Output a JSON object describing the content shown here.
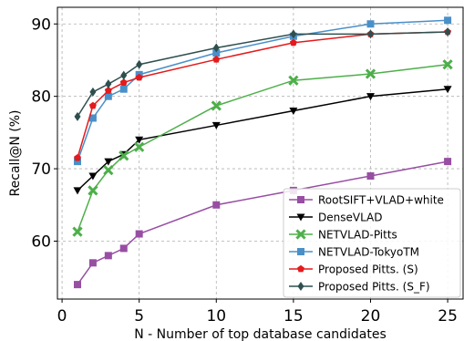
{
  "chart_data": {
    "type": "line",
    "title": "",
    "xlabel": "N - Number of top database candidates",
    "ylabel": "Recall@N (%)",
    "xlim": [
      -0.3,
      26
    ],
    "ylim": [
      52,
      92.3
    ],
    "xticks": [
      0,
      5,
      10,
      15,
      20,
      25
    ],
    "yticks": [
      60,
      70,
      80,
      90
    ],
    "grid": true,
    "legend_position": "bottom-right",
    "x": [
      1,
      2,
      3,
      4,
      5,
      10,
      15,
      20,
      25
    ],
    "series": [
      {
        "name": "RootSIFT+VLAD+white",
        "color": "#984ea3",
        "marker": "square",
        "values": [
          54,
          57,
          58,
          59,
          61,
          65,
          67,
          69,
          71
        ]
      },
      {
        "name": "DenseVLAD",
        "color": "#000000",
        "marker": "triangle-down",
        "values": [
          67,
          69,
          71,
          72,
          74,
          76,
          78,
          80,
          81
        ]
      },
      {
        "name": "NETVLAD-Pitts",
        "color": "#4daf4a",
        "marker": "x",
        "values": [
          61.3,
          67,
          69.8,
          71.8,
          73,
          78.7,
          82.2,
          83.1,
          84.4
        ]
      },
      {
        "name": "NETVLAD-TokyoTM",
        "color": "#4a90c8",
        "marker": "square",
        "values": [
          71,
          77,
          80,
          81,
          83,
          86,
          88.3,
          90,
          90.5
        ]
      },
      {
        "name": "Proposed Pitts. (S)",
        "color": "#e41a1c",
        "marker": "pentagon",
        "values": [
          71.5,
          78.7,
          80.8,
          81.9,
          82.6,
          85.1,
          87.4,
          88.6,
          88.9
        ]
      },
      {
        "name": "Proposed Pitts. (S_F)",
        "color": "#2f4f4f",
        "marker": "diamond",
        "values": [
          77.2,
          80.6,
          81.7,
          82.9,
          84.4,
          86.7,
          88.6,
          88.6,
          88.9
        ]
      }
    ]
  }
}
